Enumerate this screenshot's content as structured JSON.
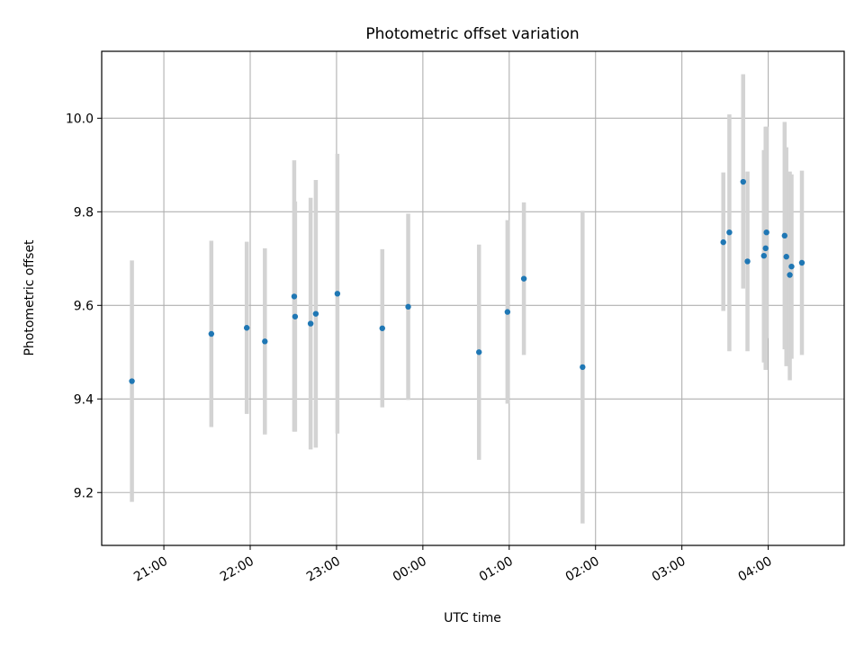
{
  "chart_data": {
    "type": "scatter",
    "title": "Photometric offset variation",
    "xlabel": "UTC time",
    "ylabel": "Photometric offset",
    "x_unit": "hours_since_20:00",
    "xlim": [
      0.28,
      8.88
    ],
    "ylim": [
      9.087,
      10.143
    ],
    "grid": true,
    "xticks": [
      {
        "value": 1,
        "label": "21:00"
      },
      {
        "value": 2,
        "label": "22:00"
      },
      {
        "value": 3,
        "label": "23:00"
      },
      {
        "value": 4,
        "label": "00:00"
      },
      {
        "value": 5,
        "label": "01:00"
      },
      {
        "value": 6,
        "label": "02:00"
      },
      {
        "value": 7,
        "label": "03:00"
      },
      {
        "value": 8,
        "label": "04:00"
      }
    ],
    "yticks": [
      {
        "value": 9.2,
        "label": "9.2"
      },
      {
        "value": 9.4,
        "label": "9.4"
      },
      {
        "value": 9.6,
        "label": "9.6"
      },
      {
        "value": 9.8,
        "label": "9.8"
      },
      {
        "value": 10.0,
        "label": "10.0"
      }
    ],
    "series": [
      {
        "name": "",
        "color": "#1f77b4",
        "error_color": "#d3d3d3",
        "points": [
          {
            "x": 0.63,
            "y": 9.438,
            "lo": 9.18,
            "hi": 9.696
          },
          {
            "x": 1.55,
            "y": 9.539,
            "lo": 9.34,
            "hi": 9.738
          },
          {
            "x": 1.96,
            "y": 9.552,
            "lo": 9.368,
            "hi": 9.736
          },
          {
            "x": 2.17,
            "y": 9.523,
            "lo": 9.324,
            "hi": 9.722
          },
          {
            "x": 2.51,
            "y": 9.619,
            "lo": 9.33,
            "hi": 9.91
          },
          {
            "x": 2.52,
            "y": 9.576,
            "lo": 9.33,
            "hi": 9.822
          },
          {
            "x": 2.7,
            "y": 9.561,
            "lo": 9.292,
            "hi": 9.83
          },
          {
            "x": 2.76,
            "y": 9.582,
            "lo": 9.296,
            "hi": 9.868
          },
          {
            "x": 3.01,
            "y": 9.625,
            "lo": 9.326,
            "hi": 9.924
          },
          {
            "x": 3.53,
            "y": 9.551,
            "lo": 9.382,
            "hi": 9.72
          },
          {
            "x": 3.83,
            "y": 9.597,
            "lo": 9.398,
            "hi": 9.796
          },
          {
            "x": 4.65,
            "y": 9.5,
            "lo": 9.27,
            "hi": 9.73
          },
          {
            "x": 4.98,
            "y": 9.586,
            "lo": 9.39,
            "hi": 9.782
          },
          {
            "x": 5.17,
            "y": 9.657,
            "lo": 9.494,
            "hi": 9.82
          },
          {
            "x": 5.85,
            "y": 9.468,
            "lo": 9.134,
            "hi": 9.802
          },
          {
            "x": 7.48,
            "y": 9.735,
            "lo": 9.588,
            "hi": 9.884
          },
          {
            "x": 7.55,
            "y": 9.756,
            "lo": 9.502,
            "hi": 10.008
          },
          {
            "x": 7.71,
            "y": 9.864,
            "lo": 9.636,
            "hi": 10.094
          },
          {
            "x": 7.76,
            "y": 9.694,
            "lo": 9.502,
            "hi": 9.886
          },
          {
            "x": 7.95,
            "y": 9.706,
            "lo": 9.478,
            "hi": 9.932
          },
          {
            "x": 7.97,
            "y": 9.722,
            "lo": 9.462,
            "hi": 9.982
          },
          {
            "x": 7.98,
            "y": 9.756,
            "lo": 9.53,
            "hi": 9.982
          },
          {
            "x": 8.19,
            "y": 9.749,
            "lo": 9.506,
            "hi": 9.992
          },
          {
            "x": 8.21,
            "y": 9.704,
            "lo": 9.47,
            "hi": 9.938
          },
          {
            "x": 8.25,
            "y": 9.665,
            "lo": 9.44,
            "hi": 9.886
          },
          {
            "x": 8.27,
            "y": 9.683,
            "lo": 9.486,
            "hi": 9.88
          },
          {
            "x": 8.39,
            "y": 9.691,
            "lo": 9.494,
            "hi": 9.888
          }
        ]
      }
    ]
  }
}
